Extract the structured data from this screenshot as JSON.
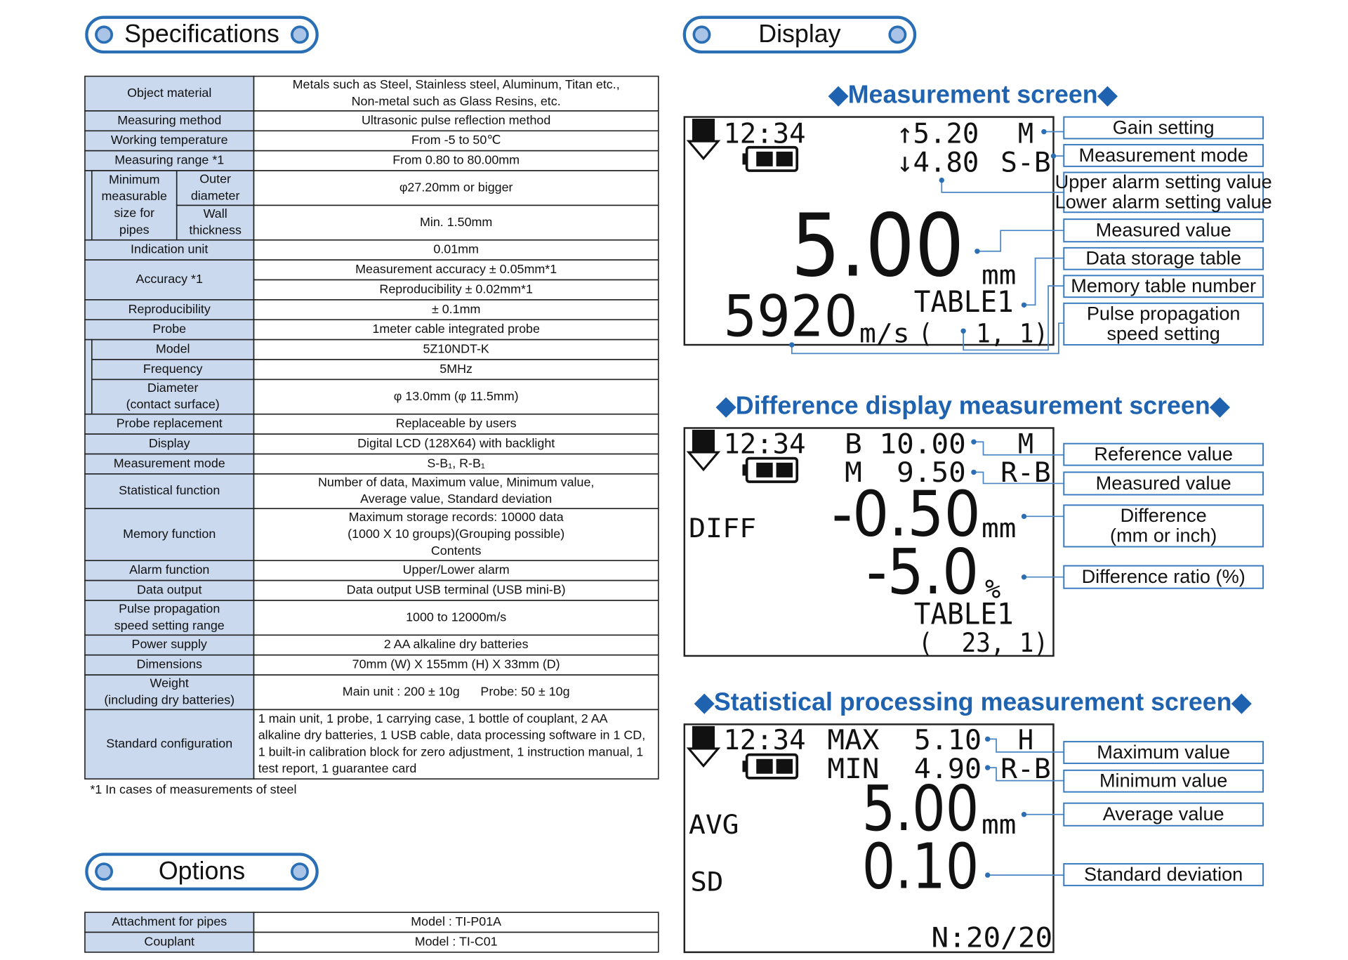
{
  "specifications": {
    "heading": "Specifications",
    "rows": [
      {
        "label": [
          "Object material"
        ],
        "value": [
          "Metals such as Steel, Stainless steel, Aluminum, Titan etc.,",
          "Non-metal such as Glass Resins, etc."
        ]
      },
      {
        "label": [
          "Measuring method"
        ],
        "value": [
          "Ultrasonic pulse reflection method"
        ]
      },
      {
        "label": [
          "Working temperature"
        ],
        "value": [
          "From -5 to 50℃"
        ]
      },
      {
        "label": [
          "Measuring range *1"
        ],
        "value": [
          "From 0.80 to 80.00mm"
        ]
      },
      {
        "label": [
          "Minimum",
          "measurable",
          "size for",
          "pipes"
        ],
        "sub": [
          {
            "label": [
              "Outer",
              "diameter"
            ],
            "value": [
              "φ27.20mm or bigger"
            ]
          },
          {
            "label": [
              "Wall",
              "thickness"
            ],
            "value": [
              "Min. 1.50mm"
            ]
          }
        ]
      },
      {
        "label": [
          "Indication unit"
        ],
        "value": [
          "0.01mm"
        ]
      },
      {
        "label": [
          "Accuracy *1"
        ],
        "values": [
          [
            "Measurement accuracy ± 0.05mm*1"
          ],
          [
            "Reproducibility ± 0.02mm*1"
          ]
        ]
      },
      {
        "label": [
          "Reproducibility"
        ],
        "value": [
          "± 0.1mm"
        ]
      },
      {
        "label": [
          "Probe"
        ],
        "value": [
          "1meter cable integrated probe"
        ],
        "parts": [
          {
            "label": [
              "Model"
            ],
            "value": [
              "5Z10NDT-K"
            ]
          },
          {
            "label": [
              "Frequency"
            ],
            "value": [
              "5MHz"
            ]
          },
          {
            "label": [
              "Diameter",
              "(contact surface)"
            ],
            "value": [
              "φ 13.0mm (φ 11.5mm)"
            ]
          }
        ]
      },
      {
        "label": [
          "Probe replacement"
        ],
        "value": [
          "Replaceable by users"
        ]
      },
      {
        "label": [
          "Display"
        ],
        "value": [
          "Digital LCD (128X64) with backlight"
        ]
      },
      {
        "label": [
          "Measurement mode"
        ],
        "value": [
          "S-B₁, R-B₁"
        ]
      },
      {
        "label": [
          "Statistical function"
        ],
        "value": [
          "Number of data, Maximum value, Minimum value,",
          "Average value, Standard deviation"
        ]
      },
      {
        "label": [
          "Memory function"
        ],
        "value": [
          "Maximum storage records: 10000 data",
          "(1000 X 10 groups)(Grouping possible)",
          "Contents"
        ]
      },
      {
        "label": [
          "Alarm function"
        ],
        "value": [
          "Upper/Lower alarm"
        ]
      },
      {
        "label": [
          "Data output"
        ],
        "value": [
          "Data output USB terminal (USB mini-B)"
        ]
      },
      {
        "label": [
          "Pulse propagation",
          "speed setting range"
        ],
        "value": [
          "1000 to 12000m/s"
        ]
      },
      {
        "label": [
          "Power supply"
        ],
        "value": [
          "2 AA alkaline dry batteries"
        ]
      },
      {
        "label": [
          "Dimensions"
        ],
        "value": [
          "70mm (W) X 155mm (H) X 33mm (D)"
        ]
      },
      {
        "label": [
          "Weight",
          "(including dry batteries)"
        ],
        "value": [
          "Main unit : 200 ± 10g      Probe: 50 ± 10g"
        ]
      },
      {
        "label": [
          "Standard configuration"
        ],
        "value": [
          "1 main unit, 1 probe, 1 carrying case, 1 bottle of couplant, 2 AA",
          "alkaline dry batteries, 1 USB cable, data processing software in 1 CD,",
          "1 built-in calibration block for zero adjustment, 1 instruction manual, 1",
          "test report, 1 guarantee card"
        ]
      }
    ],
    "footnote": "*1 In cases of measurements of steel"
  },
  "options": {
    "heading": "Options",
    "rows": [
      {
        "label": [
          "Attachment for pipes"
        ],
        "value": [
          "Model : TI-P01A"
        ]
      },
      {
        "label": [
          "Couplant"
        ],
        "value": [
          "Model : TI-C01"
        ]
      }
    ]
  },
  "display": {
    "heading": "Display",
    "screens": [
      {
        "title": "◆Measurement screen◆",
        "texts": [
          "12:34",
          "↑5.20",
          "M",
          "↓4.80",
          "S-B",
          "5.00",
          "mm",
          "TABLE1",
          "5920",
          "m/s",
          "(   1, 1)"
        ],
        "callouts": [
          [
            "Gain setting"
          ],
          [
            "Measurement mode"
          ],
          [
            "Upper alarm setting value",
            "Lower alarm setting value"
          ],
          [
            "Measured value"
          ],
          [
            "Data storage table"
          ],
          [
            "Memory table number"
          ],
          [
            "Pulse propagation",
            "speed setting"
          ]
        ]
      },
      {
        "title": "◆Difference display measurement screen◆",
        "texts": [
          "12:34",
          "B 10.00",
          "M",
          "M  9.50",
          "R-B",
          "DIFF",
          "-0.50",
          "mm",
          "-5.0",
          "%",
          "TABLE1",
          "(  23, 1)"
        ],
        "callouts": [
          [
            "Reference value"
          ],
          [
            "Measured value"
          ],
          [
            "Difference",
            "(mm or inch)"
          ],
          [
            "Difference ratio (%)"
          ]
        ]
      },
      {
        "title": "◆Statistical processing measurement screen◆",
        "texts": [
          "12:34",
          "MAX",
          "5.10",
          "H",
          "MIN",
          "4.90",
          "R-B",
          "AVG",
          "5.00",
          "mm",
          "SD",
          "0.10",
          "N:20/20"
        ],
        "callouts": [
          [
            "Maximum value"
          ],
          [
            "Minimum value"
          ],
          [
            "Average value"
          ],
          [
            "Standard deviation"
          ]
        ]
      }
    ]
  }
}
